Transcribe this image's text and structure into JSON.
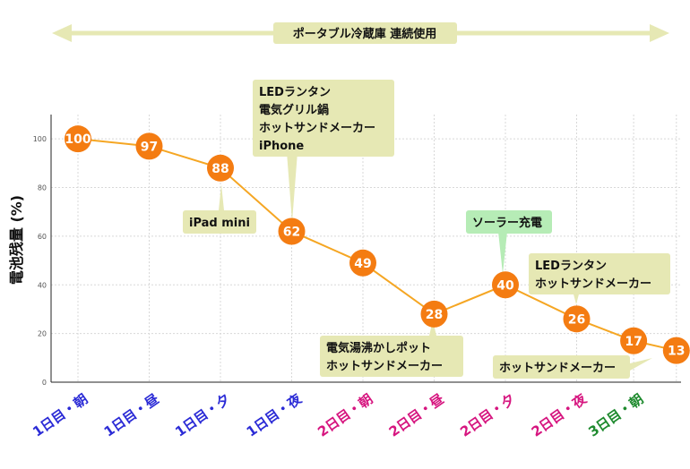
{
  "chart_data": {
    "type": "line",
    "ylabel": "電池残量 (%)",
    "ylim": [
      0,
      110
    ],
    "yticks": [
      0,
      20,
      40,
      60,
      80,
      100
    ],
    "grid": true,
    "categories": [
      "1日目・朝",
      "1日目・昼",
      "1日目・夕",
      "1日目・夜",
      "2日目・朝",
      "2日目・昼",
      "2日目・夕",
      "2日目・夜",
      "3日目・朝",
      ""
    ],
    "x": [
      0,
      1,
      2,
      3,
      4,
      5,
      6,
      7,
      7.8,
      8.4
    ],
    "values": [
      100,
      97,
      88,
      62,
      49,
      28,
      40,
      26,
      17,
      13
    ],
    "line_color": "#f5a623",
    "marker_color": "#f47c12",
    "category_colors": [
      "#2b2bd6",
      "#2b2bd6",
      "#2b2bd6",
      "#2b2bd6",
      "#d6157f",
      "#d6157f",
      "#d6157f",
      "#d6157f",
      "#1e8a2e"
    ],
    "banner": {
      "text": "ポータブル冷蔵庫 連続使用",
      "color": "#e6e8b4"
    },
    "annotations": [
      {
        "point": 2,
        "lines": [
          "iPad mini"
        ],
        "color": "#e6e8b4"
      },
      {
        "point": 3,
        "lines": [
          "LEDランタン",
          "電気グリル鍋",
          "ホットサンドメーカー",
          "iPhone"
        ],
        "color": "#e6e8b4"
      },
      {
        "point": 5,
        "lines": [
          "電気湯沸かしポット",
          "ホットサンドメーカー"
        ],
        "color": "#e6e8b4"
      },
      {
        "point": 6,
        "lines": [
          "ソーラー充電"
        ],
        "color": "#b6ecb6"
      },
      {
        "point": 7,
        "lines": [
          "LEDランタン",
          "ホットサンドメーカー"
        ],
        "color": "#e6e8b4"
      },
      {
        "point": 9,
        "lines": [
          "ホットサンドメーカー"
        ],
        "color": "#e6e8b4"
      }
    ]
  }
}
